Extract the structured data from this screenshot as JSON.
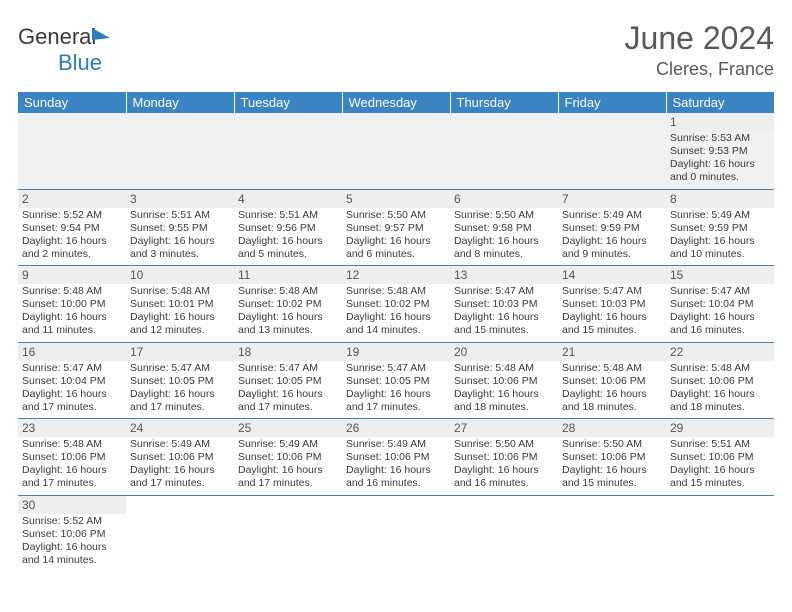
{
  "brand": {
    "part1": "General",
    "part2": "Blue"
  },
  "title": "June 2024",
  "location": "Cleres, France",
  "colors": {
    "header_bg": "#3b84c4",
    "header_fg": "#ffffff",
    "daynum_bg": "#eeeeee",
    "text": "#3a3a3a",
    "title": "#595959",
    "rule": "#3b84c4"
  },
  "typography": {
    "title_fontsize": 32,
    "location_fontsize": 18,
    "weekday_fontsize": 13,
    "cell_fontsize": 10.5
  },
  "weekday_headers": [
    "Sunday",
    "Monday",
    "Tuesday",
    "Wednesday",
    "Thursday",
    "Friday",
    "Saturday"
  ],
  "weeks": [
    [
      null,
      null,
      null,
      null,
      null,
      null,
      {
        "n": "1",
        "sr": "Sunrise: 5:53 AM",
        "ss": "Sunset: 9:53 PM",
        "d1": "Daylight: 16 hours",
        "d2": "and 0 minutes."
      }
    ],
    [
      {
        "n": "2",
        "sr": "Sunrise: 5:52 AM",
        "ss": "Sunset: 9:54 PM",
        "d1": "Daylight: 16 hours",
        "d2": "and 2 minutes."
      },
      {
        "n": "3",
        "sr": "Sunrise: 5:51 AM",
        "ss": "Sunset: 9:55 PM",
        "d1": "Daylight: 16 hours",
        "d2": "and 3 minutes."
      },
      {
        "n": "4",
        "sr": "Sunrise: 5:51 AM",
        "ss": "Sunset: 9:56 PM",
        "d1": "Daylight: 16 hours",
        "d2": "and 5 minutes."
      },
      {
        "n": "5",
        "sr": "Sunrise: 5:50 AM",
        "ss": "Sunset: 9:57 PM",
        "d1": "Daylight: 16 hours",
        "d2": "and 6 minutes."
      },
      {
        "n": "6",
        "sr": "Sunrise: 5:50 AM",
        "ss": "Sunset: 9:58 PM",
        "d1": "Daylight: 16 hours",
        "d2": "and 8 minutes."
      },
      {
        "n": "7",
        "sr": "Sunrise: 5:49 AM",
        "ss": "Sunset: 9:59 PM",
        "d1": "Daylight: 16 hours",
        "d2": "and 9 minutes."
      },
      {
        "n": "8",
        "sr": "Sunrise: 5:49 AM",
        "ss": "Sunset: 9:59 PM",
        "d1": "Daylight: 16 hours",
        "d2": "and 10 minutes."
      }
    ],
    [
      {
        "n": "9",
        "sr": "Sunrise: 5:48 AM",
        "ss": "Sunset: 10:00 PM",
        "d1": "Daylight: 16 hours",
        "d2": "and 11 minutes."
      },
      {
        "n": "10",
        "sr": "Sunrise: 5:48 AM",
        "ss": "Sunset: 10:01 PM",
        "d1": "Daylight: 16 hours",
        "d2": "and 12 minutes."
      },
      {
        "n": "11",
        "sr": "Sunrise: 5:48 AM",
        "ss": "Sunset: 10:02 PM",
        "d1": "Daylight: 16 hours",
        "d2": "and 13 minutes."
      },
      {
        "n": "12",
        "sr": "Sunrise: 5:48 AM",
        "ss": "Sunset: 10:02 PM",
        "d1": "Daylight: 16 hours",
        "d2": "and 14 minutes."
      },
      {
        "n": "13",
        "sr": "Sunrise: 5:47 AM",
        "ss": "Sunset: 10:03 PM",
        "d1": "Daylight: 16 hours",
        "d2": "and 15 minutes."
      },
      {
        "n": "14",
        "sr": "Sunrise: 5:47 AM",
        "ss": "Sunset: 10:03 PM",
        "d1": "Daylight: 16 hours",
        "d2": "and 15 minutes."
      },
      {
        "n": "15",
        "sr": "Sunrise: 5:47 AM",
        "ss": "Sunset: 10:04 PM",
        "d1": "Daylight: 16 hours",
        "d2": "and 16 minutes."
      }
    ],
    [
      {
        "n": "16",
        "sr": "Sunrise: 5:47 AM",
        "ss": "Sunset: 10:04 PM",
        "d1": "Daylight: 16 hours",
        "d2": "and 17 minutes."
      },
      {
        "n": "17",
        "sr": "Sunrise: 5:47 AM",
        "ss": "Sunset: 10:05 PM",
        "d1": "Daylight: 16 hours",
        "d2": "and 17 minutes."
      },
      {
        "n": "18",
        "sr": "Sunrise: 5:47 AM",
        "ss": "Sunset: 10:05 PM",
        "d1": "Daylight: 16 hours",
        "d2": "and 17 minutes."
      },
      {
        "n": "19",
        "sr": "Sunrise: 5:47 AM",
        "ss": "Sunset: 10:05 PM",
        "d1": "Daylight: 16 hours",
        "d2": "and 17 minutes."
      },
      {
        "n": "20",
        "sr": "Sunrise: 5:48 AM",
        "ss": "Sunset: 10:06 PM",
        "d1": "Daylight: 16 hours",
        "d2": "and 18 minutes."
      },
      {
        "n": "21",
        "sr": "Sunrise: 5:48 AM",
        "ss": "Sunset: 10:06 PM",
        "d1": "Daylight: 16 hours",
        "d2": "and 18 minutes."
      },
      {
        "n": "22",
        "sr": "Sunrise: 5:48 AM",
        "ss": "Sunset: 10:06 PM",
        "d1": "Daylight: 16 hours",
        "d2": "and 18 minutes."
      }
    ],
    [
      {
        "n": "23",
        "sr": "Sunrise: 5:48 AM",
        "ss": "Sunset: 10:06 PM",
        "d1": "Daylight: 16 hours",
        "d2": "and 17 minutes."
      },
      {
        "n": "24",
        "sr": "Sunrise: 5:49 AM",
        "ss": "Sunset: 10:06 PM",
        "d1": "Daylight: 16 hours",
        "d2": "and 17 minutes."
      },
      {
        "n": "25",
        "sr": "Sunrise: 5:49 AM",
        "ss": "Sunset: 10:06 PM",
        "d1": "Daylight: 16 hours",
        "d2": "and 17 minutes."
      },
      {
        "n": "26",
        "sr": "Sunrise: 5:49 AM",
        "ss": "Sunset: 10:06 PM",
        "d1": "Daylight: 16 hours",
        "d2": "and 16 minutes."
      },
      {
        "n": "27",
        "sr": "Sunrise: 5:50 AM",
        "ss": "Sunset: 10:06 PM",
        "d1": "Daylight: 16 hours",
        "d2": "and 16 minutes."
      },
      {
        "n": "28",
        "sr": "Sunrise: 5:50 AM",
        "ss": "Sunset: 10:06 PM",
        "d1": "Daylight: 16 hours",
        "d2": "and 15 minutes."
      },
      {
        "n": "29",
        "sr": "Sunrise: 5:51 AM",
        "ss": "Sunset: 10:06 PM",
        "d1": "Daylight: 16 hours",
        "d2": "and 15 minutes."
      }
    ],
    [
      {
        "n": "30",
        "sr": "Sunrise: 5:52 AM",
        "ss": "Sunset: 10:06 PM",
        "d1": "Daylight: 16 hours",
        "d2": "and 14 minutes."
      },
      null,
      null,
      null,
      null,
      null,
      null
    ]
  ]
}
